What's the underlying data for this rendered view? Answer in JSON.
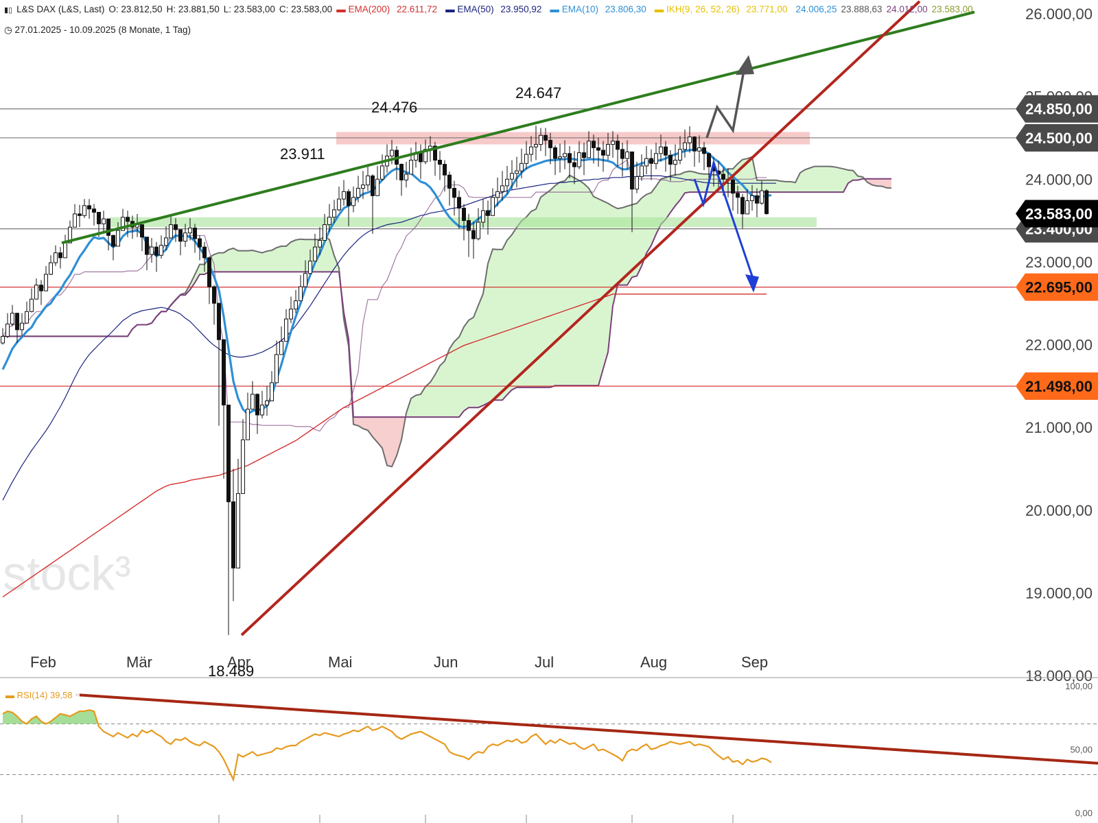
{
  "header": {
    "symbol_icon": "chart-bars-icon",
    "instrument": "L&S DAX (L&S, Last)",
    "open": "O: 23.812,50",
    "high": "H: 23.881,50",
    "low": "L: 23.583,00",
    "close": "C: 23.583,00",
    "ema200_label": "EMA(200)",
    "ema200_value": "22.611,72",
    "ema50_label": "EMA(50)",
    "ema50_value": "23.950,92",
    "ema10_label": "EMA(10)",
    "ema10_value": "23.806,30",
    "ikh_label": "IKH(9, 26, 52, 26)",
    "ikh_v1": "23.771,00",
    "ikh_v2": "24.006,25",
    "ikh_v3": "23.888,63",
    "ikh_v4": "24.012,00",
    "ikh_v5": "23.583,00",
    "clock_icon": "clock-icon",
    "range": "27.01.2025 - 10.09.2025",
    "period": "(8 Monate, 1 Tag)"
  },
  "colors": {
    "ema200": "#d32f2f",
    "ema50": "#1a237e",
    "ema10": "#2e8fd6",
    "ikh": "#e6c000",
    "ikh_v2": "#2e8fd6",
    "ikh_v3": "#555555",
    "ikh_v4": "#7b3f7b",
    "ikh_v5": "#8a9a2a",
    "cloud_bull": "#d9f5d0",
    "cloud_bear": "#f7cfcf",
    "trend_green": "#2e7d1e",
    "trend_red": "#b3261e",
    "rsi_line": "#e69a1e",
    "rsi_trend": "#a52714",
    "tag_orange": "#ff6a1a",
    "tag_grey": "#4a4a4a",
    "tag_black": "#000000"
  },
  "watermark": "stock³",
  "chart_data": {
    "type": "candlestick",
    "title": "L&S DAX (L&S, Last)",
    "ylim": [
      18000,
      26000
    ],
    "y_ticks": [
      "26.000,00",
      "25.000,00",
      "24.000,00",
      "23.000,00",
      "22.000,00",
      "21.000,00",
      "20.000,00",
      "19.000,00",
      "18.000,00"
    ],
    "y_tick_values": [
      26000,
      25000,
      24000,
      23000,
      22000,
      21000,
      20000,
      19000,
      18000
    ],
    "months": [
      "Feb",
      "Mär",
      "Apr",
      "Mai",
      "Jun",
      "Jul",
      "Aug",
      "Sep"
    ],
    "month_day_index": [
      4,
      24,
      45,
      66,
      88,
      109,
      131,
      152
    ],
    "trading_days": 162,
    "close": [
      22100,
      22250,
      22380,
      22180,
      22260,
      22400,
      22550,
      22720,
      22650,
      22850,
      22990,
      23110,
      23050,
      23230,
      23420,
      23580,
      23560,
      23680,
      23640,
      23600,
      23460,
      23520,
      23320,
      23190,
      23380,
      23540,
      23490,
      23420,
      23450,
      23300,
      23090,
      23180,
      23080,
      23200,
      23290,
      23450,
      23390,
      23250,
      23350,
      23410,
      23280,
      23180,
      23050,
      22700,
      22500,
      22060,
      21270,
      20100,
      19300,
      20200,
      20850,
      21220,
      21400,
      21150,
      21270,
      21320,
      21540,
      21880,
      22040,
      22310,
      22430,
      22530,
      22700,
      22860,
      23010,
      23180,
      23260,
      23450,
      23540,
      23630,
      23760,
      23850,
      23680,
      23780,
      23890,
      23930,
      24040,
      23800,
      24000,
      24160,
      24280,
      24350,
      24180,
      23990,
      24060,
      24230,
      24320,
      24210,
      24360,
      24400,
      24230,
      24180,
      24050,
      23890,
      23780,
      23650,
      23500,
      23380,
      23280,
      23480,
      23620,
      23560,
      23780,
      23850,
      23920,
      24000,
      24070,
      24100,
      24190,
      24300,
      24390,
      24420,
      24530,
      24470,
      24380,
      24250,
      24270,
      24310,
      24200,
      24150,
      24320,
      24260,
      24460,
      24380,
      24350,
      24290,
      24420,
      24460,
      24360,
      24250,
      24330,
      23880,
      24030,
      24160,
      24250,
      24190,
      24310,
      24390,
      24290,
      24180,
      24230,
      24360,
      24440,
      24510,
      24340,
      24380,
      24310,
      24150,
      24100,
      24060,
      24000,
      23990,
      23830,
      23780,
      23580,
      23740,
      23800,
      23710,
      23860,
      23583
    ],
    "high": [
      22200,
      22380,
      22480,
      22300,
      22380,
      22520,
      22680,
      22800,
      22780,
      22950,
      23080,
      23200,
      23180,
      23330,
      23500,
      23700,
      23690,
      23760,
      23760,
      23700,
      23560,
      23620,
      23460,
      23330,
      23480,
      23640,
      23620,
      23560,
      23580,
      23420,
      23250,
      23290,
      23240,
      23320,
      23430,
      23560,
      23530,
      23370,
      23460,
      23530,
      23460,
      23320,
      23240,
      22940,
      22720,
      22440,
      21620,
      20700,
      20500,
      20620,
      21100,
      21420,
      21560,
      21410,
      21440,
      21500,
      21680,
      22050,
      22220,
      22430,
      22580,
      22660,
      22840,
      23020,
      23150,
      23340,
      23420,
      23580,
      23700,
      23750,
      23910,
      23990,
      23880,
      23910,
      24040,
      24100,
      24170,
      24060,
      24160,
      24300,
      24420,
      24476,
      24400,
      24190,
      24210,
      24380,
      24450,
      24420,
      24480,
      24520,
      24450,
      24340,
      24230,
      24090,
      23980,
      23860,
      23700,
      23580,
      23490,
      23650,
      23760,
      23740,
      23890,
      24020,
      24100,
      24160,
      24230,
      24270,
      24370,
      24460,
      24520,
      24647,
      24620,
      24620,
      24560,
      24410,
      24430,
      24470,
      24400,
      24340,
      24460,
      24440,
      24580,
      24540,
      24500,
      24460,
      24560,
      24580,
      24540,
      24440,
      24470,
      24200,
      24210,
      24300,
      24400,
      24360,
      24440,
      24540,
      24460,
      24350,
      24420,
      24520,
      24600,
      24640,
      24520,
      24530,
      24450,
      24320,
      24270,
      24220,
      24140,
      24130,
      24020,
      23920,
      23820,
      23880,
      23930,
      23890,
      23980,
      23880
    ],
    "low": [
      22000,
      22080,
      22220,
      22020,
      22100,
      22260,
      22390,
      22580,
      22480,
      22700,
      22840,
      22950,
      22920,
      23070,
      23260,
      23450,
      23420,
      23530,
      23520,
      23440,
      23300,
      23370,
      23140,
      23020,
      23230,
      23380,
      23300,
      23280,
      23300,
      23130,
      22900,
      22990,
      22880,
      23040,
      23140,
      23290,
      23240,
      23080,
      23180,
      23260,
      23110,
      23020,
      22880,
      22490,
      22240,
      21020,
      20380,
      18489,
      18900,
      19300,
      20420,
      20990,
      21240,
      20920,
      21110,
      21140,
      21380,
      21690,
      21880,
      22150,
      22260,
      22380,
      22550,
      22710,
      22850,
      23020,
      23080,
      23300,
      23360,
      23470,
      23610,
      23680,
      23430,
      23600,
      23720,
      23760,
      23860,
      23340,
      23820,
      23980,
      24080,
      24180,
      23990,
      23800,
      23900,
      24060,
      24140,
      24000,
      24180,
      24210,
      24040,
      23990,
      23850,
      23680,
      23560,
      23400,
      23260,
      23060,
      23040,
      23260,
      23410,
      23330,
      23580,
      23670,
      23740,
      23820,
      23880,
      23900,
      24010,
      24120,
      24210,
      24230,
      24340,
      24280,
      24180,
      24050,
      24080,
      24120,
      24010,
      23940,
      24120,
      24050,
      24260,
      24190,
      24150,
      24090,
      24230,
      24260,
      24150,
      24030,
      24120,
      23360,
      23830,
      23980,
      24060,
      23990,
      24120,
      24210,
      24090,
      23980,
      24040,
      24180,
      24260,
      24320,
      24150,
      24200,
      24110,
      23960,
      23910,
      23860,
      23800,
      23780,
      23620,
      23580,
      23400,
      23590,
      23620,
      23540,
      23690,
      23570
    ],
    "ema10": [
      21700,
      21820,
      21950,
      22030,
      22090,
      22160,
      22210,
      22310,
      22380,
      22460,
      22500,
      22590,
      22660,
      22760,
      22840,
      22950,
      23060,
      23140,
      23230,
      23300,
      23280,
      23290,
      23230,
      23180,
      23220,
      23310,
      23360,
      23370,
      23380,
      23340,
      23220,
      23140,
      23070,
      23100,
      23150,
      23260,
      23320,
      23310,
      23320,
      23300,
      23250,
      23170,
      23080,
      22960,
      22820,
      22660,
      22340,
      21950,
      21560,
      21350,
      21220,
      21160,
      21200,
      21210,
      21220,
      21260,
      21380,
      21580,
      21760,
      21960,
      22160,
      22340,
      22500,
      22680,
      22840,
      22990,
      23100,
      23240,
      23380,
      23480,
      23570,
      23650,
      23680,
      23730,
      23780,
      23820,
      23840,
      23860,
      23930,
      23990,
      24050,
      24100,
      24130,
      24110,
      24080,
      24070,
      24020,
      23970,
      23950,
      23900,
      23820,
      23720,
      23620,
      23540,
      23480,
      23430,
      23420,
      23440,
      23470,
      23520,
      23560,
      23590,
      23640,
      23700,
      23760,
      23820,
      23920,
      24010,
      24080,
      24130,
      24160,
      24180,
      24200,
      24220,
      24230,
      24230,
      24240,
      24240,
      24250,
      24240,
      24230,
      24230,
      24240,
      24240,
      24240,
      24230,
      24220,
      24200,
      24150,
      24120,
      24120,
      24150,
      24170,
      24190,
      24210,
      24220,
      24220,
      24230,
      24250,
      24280,
      24300,
      24320,
      24340,
      24350,
      24360,
      24360,
      24340,
      24310,
      24250,
      24210,
      24150,
      24080,
      24030,
      23980,
      23930,
      23860,
      23800,
      23780,
      23790,
      23800,
      23806
    ],
    "ema50": [
      20120,
      20230,
      20340,
      20440,
      20540,
      20630,
      20720,
      20800,
      20880,
      20960,
      21050,
      21150,
      21250,
      21360,
      21480,
      21600,
      21710,
      21800,
      21880,
      21940,
      22000,
      22060,
      22110,
      22170,
      22230,
      22290,
      22330,
      22370,
      22390,
      22410,
      22420,
      22430,
      22440,
      22450,
      22440,
      22420,
      22400,
      22370,
      22320,
      22280,
      22220,
      22160,
      22100,
      22040,
      21990,
      21950,
      21910,
      21880,
      21860,
      21850,
      21850,
      21860,
      21870,
      21890,
      21910,
      21940,
      21970,
      22010,
      22050,
      22100,
      22160,
      22230,
      22310,
      22390,
      22470,
      22560,
      22650,
      22740,
      22830,
      22920,
      23000,
      23080,
      23150,
      23210,
      23270,
      23320,
      23360,
      23390,
      23410,
      23430,
      23450,
      23460,
      23470,
      23480,
      23500,
      23520,
      23540,
      23560,
      23570,
      23590,
      23600,
      23610,
      23620,
      23640,
      23650,
      23660,
      23680,
      23700,
      23720,
      23740,
      23760,
      23780,
      23800,
      23820,
      23840,
      23860,
      23870,
      23880,
      23890,
      23900,
      23910,
      23920,
      23930,
      23940,
      23950,
      23950,
      23960,
      23960,
      23970,
      23970,
      23980,
      23990,
      23990,
      24000,
      24000,
      24010,
      24010,
      24020,
      24020,
      24020,
      24030,
      24030,
      24030,
      24040,
      24040,
      24040,
      24040,
      24040,
      24030,
      24030,
      24020,
      24010,
      24000,
      23990,
      23980,
      23970,
      23960,
      23955,
      23950,
      23950,
      23950,
      23950,
      23951,
      23951,
      23951,
      23951,
      23951,
      23951,
      23951,
      23951,
      23951,
      23951
    ],
    "ema200": [
      18950,
      18990,
      19030,
      19070,
      19110,
      19150,
      19190,
      19230,
      19270,
      19310,
      19350,
      19390,
      19430,
      19470,
      19510,
      19550,
      19590,
      19630,
      19670,
      19710,
      19750,
      19790,
      19830,
      19870,
      19910,
      19950,
      19990,
      20030,
      20070,
      20110,
      20150,
      20190,
      20230,
      20260,
      20290,
      20310,
      20320,
      20330,
      20340,
      20360,
      20370,
      20380,
      20390,
      20400,
      20410,
      20420,
      20440,
      20460,
      20480,
      20500,
      20520,
      20540,
      20570,
      20600,
      20630,
      20660,
      20690,
      20720,
      20750,
      20780,
      20810,
      20840,
      20880,
      20920,
      20960,
      21000,
      21040,
      21080,
      21120,
      21160,
      21200,
      21240,
      21270,
      21300,
      21330,
      21360,
      21390,
      21420,
      21450,
      21480,
      21510,
      21540,
      21570,
      21600,
      21630,
      21660,
      21690,
      21720,
      21750,
      21780,
      21810,
      21840,
      21870,
      21900,
      21930,
      21960,
      21990,
      22010,
      22030,
      22050,
      22070,
      22090,
      22110,
      22130,
      22150,
      22170,
      22190,
      22210,
      22230,
      22250,
      22270,
      22290,
      22310,
      22330,
      22350,
      22370,
      22390,
      22410,
      22430,
      22450,
      22470,
      22490,
      22510,
      22530,
      22550,
      22570,
      22590,
      22611,
      22611,
      22611,
      22611,
      22611,
      22611,
      22611,
      22611,
      22611,
      22611,
      22611,
      22611,
      22611,
      22611,
      22611,
      22611,
      22611,
      22611,
      22611,
      22611,
      22611,
      22611,
      22611,
      22611,
      22611,
      22611,
      22611,
      22611,
      22611,
      22611,
      22611,
      22611,
      22612
    ],
    "horizontal_levels": [
      {
        "value": 24850,
        "label": "24.850,00",
        "kind": "grey"
      },
      {
        "value": 24500,
        "label": "24.500,00",
        "kind": "grey"
      },
      {
        "value": 23400,
        "label": "23.400,00",
        "kind": "grey"
      },
      {
        "value": 22695,
        "label": "22.695,00",
        "kind": "orange"
      },
      {
        "value": 21498,
        "label": "21.498,00",
        "kind": "orange"
      }
    ],
    "last_price": {
      "value": 23583,
      "label": "23.583,00"
    },
    "annotations": [
      {
        "text": "24.647",
        "day": 111,
        "value": 24647
      },
      {
        "text": "24.476",
        "day": 81,
        "value": 24476
      },
      {
        "text": "23.911",
        "day": 62,
        "value": 23911
      },
      {
        "text": "18.489",
        "day": 47,
        "value": 18489
      }
    ],
    "resistance_zone": [
      24420,
      24570
    ],
    "support_zone": [
      23420,
      23540
    ],
    "rsi": {
      "label": "RSI(14)",
      "value_label": "39,58",
      "ylim": [
        0,
        100
      ],
      "ticks": [
        "100,00",
        "50,00",
        "0,00"
      ],
      "tick_values": [
        100,
        50,
        0
      ],
      "overbought": 70,
      "oversold": 30,
      "values": [
        78,
        80,
        79,
        76,
        72,
        70,
        74,
        76,
        72,
        70,
        72,
        75,
        78,
        77,
        76,
        78,
        80,
        80,
        81,
        80,
        68,
        64,
        62,
        60,
        63,
        61,
        59,
        62,
        60,
        65,
        63,
        65,
        62,
        60,
        56,
        54,
        58,
        57,
        59,
        56,
        54,
        53,
        56,
        54,
        52,
        48,
        42,
        34,
        26,
        46,
        44,
        46,
        48,
        45,
        46,
        47,
        48,
        51,
        50,
        52,
        53,
        53,
        56,
        58,
        60,
        62,
        61,
        63,
        62,
        61,
        60,
        62,
        63,
        65,
        64,
        66,
        68,
        65,
        66,
        68,
        66,
        64,
        60,
        58,
        60,
        62,
        63,
        64,
        62,
        60,
        58,
        56,
        54,
        48,
        46,
        45,
        44,
        42,
        46,
        48,
        47,
        52,
        54,
        53,
        55,
        57,
        56,
        58,
        55,
        56,
        60,
        62,
        58,
        54,
        57,
        55,
        58,
        56,
        54,
        55,
        52,
        50,
        52,
        54,
        49,
        50,
        48,
        46,
        44,
        41,
        48,
        50,
        49,
        52,
        54,
        50,
        51,
        53,
        54,
        56,
        55,
        54,
        55,
        56,
        53,
        54,
        53,
        52,
        48,
        45,
        42,
        44,
        40,
        41,
        38,
        42,
        40,
        41,
        43,
        42,
        39.58
      ]
    }
  }
}
